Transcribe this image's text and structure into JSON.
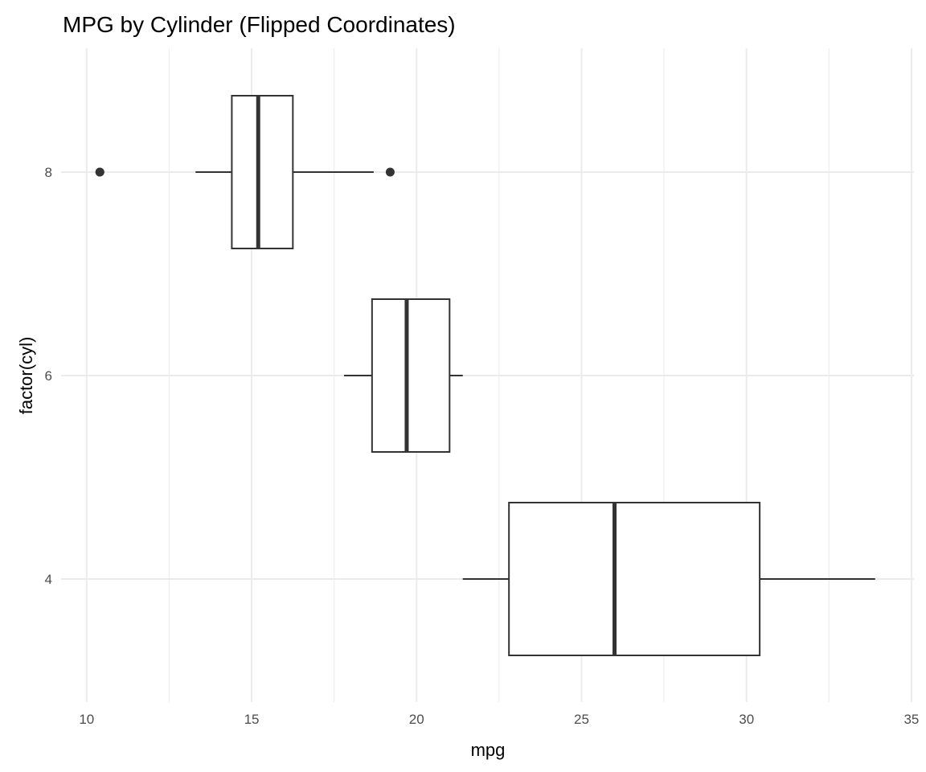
{
  "chart_data": {
    "type": "boxplot",
    "title": "MPG by Cylinder (Flipped Coordinates)",
    "xlabel": "mpg",
    "ylabel": "factor(cyl)",
    "xlim": [
      9.225,
      35.075
    ],
    "x_ticks": [
      10,
      15,
      20,
      25,
      30,
      35
    ],
    "categories": [
      "4",
      "6",
      "8"
    ],
    "grid": true,
    "boxes": [
      {
        "category": "4",
        "lower_whisker": 21.4,
        "q1": 22.8,
        "median": 26.0,
        "q3": 30.4,
        "upper_whisker": 33.9,
        "outliers": []
      },
      {
        "category": "6",
        "lower_whisker": 17.8,
        "q1": 18.65,
        "median": 19.7,
        "q3": 21.0,
        "upper_whisker": 21.4,
        "outliers": []
      },
      {
        "category": "8",
        "lower_whisker": 13.3,
        "q1": 14.4,
        "median": 15.2,
        "q3": 16.25,
        "upper_whisker": 18.7,
        "outliers": [
          10.4,
          10.4,
          19.2
        ]
      }
    ],
    "colors": {
      "line": "#333333",
      "grid": "#ebebeb",
      "fill": "#ffffff"
    }
  }
}
